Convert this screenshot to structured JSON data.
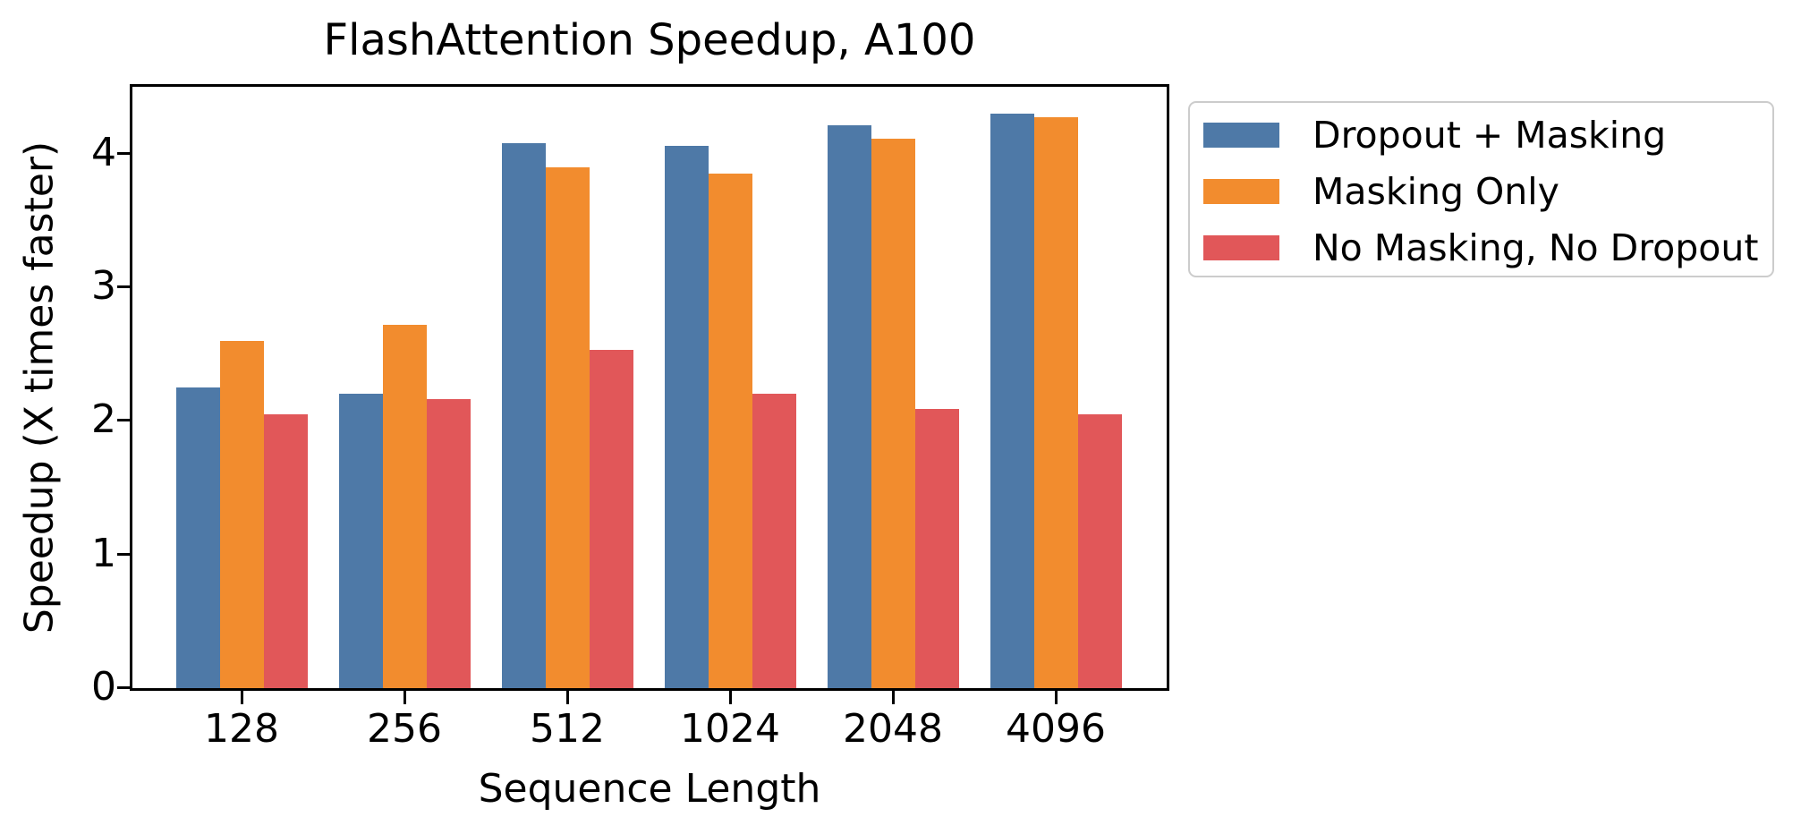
{
  "chart_data": {
    "type": "bar",
    "title": "FlashAttention Speedup, A100",
    "xlabel": "Sequence Length",
    "ylabel": "Speedup (X times faster)",
    "categories": [
      "128",
      "256",
      "512",
      "1024",
      "2048",
      "4096"
    ],
    "series": [
      {
        "name": "Dropout + Masking",
        "color": "#4e79a7",
        "values": [
          2.25,
          2.2,
          4.08,
          4.06,
          4.21,
          4.3
        ]
      },
      {
        "name": "Masking Only",
        "color": "#f28c2e",
        "values": [
          2.6,
          2.72,
          3.9,
          3.85,
          4.11,
          4.27
        ]
      },
      {
        "name": "No Masking, No Dropout",
        "color": "#e15759",
        "values": [
          2.05,
          2.16,
          2.53,
          2.2,
          2.09,
          2.05
        ]
      }
    ],
    "ylim": [
      0,
      4.5
    ],
    "yticks": [
      0,
      1,
      2,
      3,
      4
    ],
    "grid": false,
    "legend_position": "outside-upper-right",
    "axis_color": "#000000",
    "legend_border_color": "#cccccc"
  }
}
